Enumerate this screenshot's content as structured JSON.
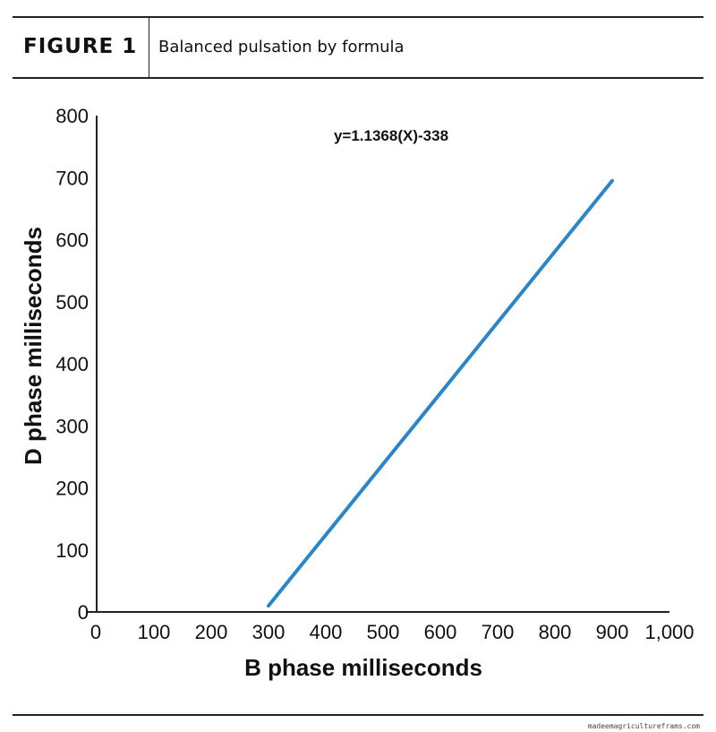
{
  "figure": {
    "label": "FIGURE 1",
    "title": "Balanced pulsation by formula"
  },
  "credit": "madeemagricultureframs.com",
  "chart_data": {
    "type": "line",
    "title": "",
    "xlabel": "B phase milliseconds",
    "ylabel": "D phase milliseconds",
    "annotation": "y=1.1368(X)-338",
    "xlim": [
      0,
      1000
    ],
    "ylim": [
      0,
      800
    ],
    "xticks": [
      0,
      100,
      200,
      300,
      400,
      500,
      600,
      700,
      800,
      900,
      1000
    ],
    "xtick_labels": [
      "0",
      "100",
      "200",
      "300",
      "400",
      "500",
      "600",
      "700",
      "800",
      "900",
      "1,000"
    ],
    "yticks": [
      0,
      100,
      200,
      300,
      400,
      500,
      600,
      700,
      800
    ],
    "ytick_labels": [
      "0",
      "100",
      "200",
      "300",
      "400",
      "500",
      "600",
      "700",
      "800"
    ],
    "grid": false,
    "series": [
      {
        "color": "#2a86c8",
        "x": [
          300,
          900
        ],
        "y": [
          10,
          695
        ]
      }
    ]
  }
}
